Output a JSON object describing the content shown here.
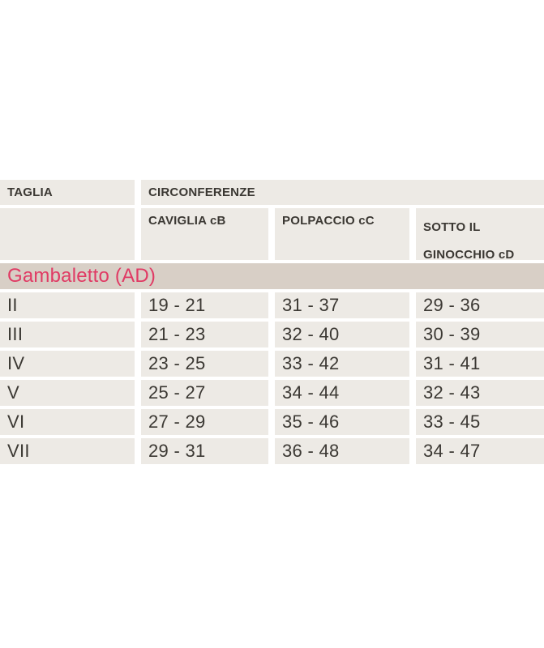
{
  "table": {
    "col1_header": "TAGLIA",
    "group_header": "CIRCONFERENZE",
    "sub_headers": [
      "CAVIGLIA cB",
      "POLPACCIO cC",
      "SOTTO IL",
      "GINOCCHIO cD"
    ],
    "banner": "Gambaletto (AD)",
    "rows": [
      {
        "size": "II",
        "caviglia": "19 - 21",
        "polpaccio": "31 - 37",
        "sotto_ginocchio": "29 - 36"
      },
      {
        "size": "III",
        "caviglia": "21 - 23",
        "polpaccio": "32 - 40",
        "sotto_ginocchio": "30 - 39"
      },
      {
        "size": "IV",
        "caviglia": "23 - 25",
        "polpaccio": "33 - 42",
        "sotto_ginocchio": "31 - 41"
      },
      {
        "size": "V",
        "caviglia": "25 - 27",
        "polpaccio": "34 - 44",
        "sotto_ginocchio": "32 - 43"
      },
      {
        "size": "VI",
        "caviglia": "27 - 29",
        "polpaccio": "35 - 46",
        "sotto_ginocchio": "33 - 45"
      },
      {
        "size": "VII",
        "caviglia": "29 - 31",
        "polpaccio": "36 - 48",
        "sotto_ginocchio": "34 - 47"
      }
    ]
  },
  "colors": {
    "cell_bg": "#edeae5",
    "banner_bg": "#d8cfc6",
    "banner_text": "#e03a64",
    "text": "#3b3833",
    "page_bg": "#ffffff"
  }
}
